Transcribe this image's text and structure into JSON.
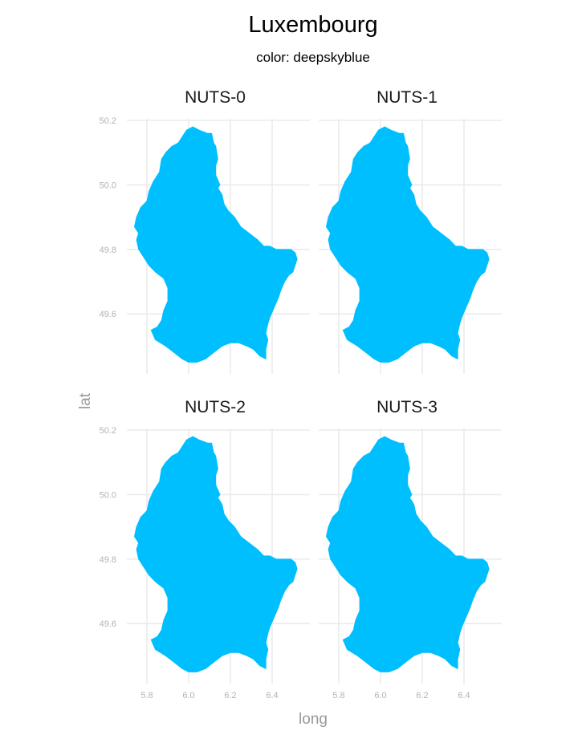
{
  "title": "Luxembourg",
  "subtitle": "color: deepskyblue",
  "xlabel": "long",
  "ylabel": "lat",
  "x_ticks": [
    "5.8",
    "6.0",
    "6.2",
    "6.4"
  ],
  "y_ticks": [
    "49.6",
    "49.8",
    "50.0",
    "50.2"
  ],
  "fill_color": "#00bfff",
  "grid_color": "#ebebeb",
  "panels": [
    {
      "label": "NUTS-0"
    },
    {
      "label": "NUTS-1"
    },
    {
      "label": "NUTS-2"
    },
    {
      "label": "NUTS-3"
    }
  ],
  "chart_data": {
    "type": "map",
    "region": "Luxembourg",
    "facets": [
      "NUTS-0",
      "NUTS-1",
      "NUTS-2",
      "NUTS-3"
    ],
    "fill": "deepskyblue",
    "x_range": [
      5.73,
      6.53
    ],
    "y_range": [
      49.44,
      50.18
    ],
    "x_ticks": [
      5.8,
      6.0,
      6.2,
      6.4
    ],
    "y_ticks": [
      49.6,
      49.8,
      50.0,
      50.2
    ],
    "outline": [
      [
        6.02,
        50.18
      ],
      [
        6.05,
        50.17
      ],
      [
        6.09,
        50.16
      ],
      [
        6.11,
        50.16
      ],
      [
        6.12,
        50.13
      ],
      [
        6.13,
        50.12
      ],
      [
        6.14,
        50.08
      ],
      [
        6.13,
        50.06
      ],
      [
        6.13,
        50.03
      ],
      [
        6.15,
        50.0
      ],
      [
        6.14,
        49.99
      ],
      [
        6.16,
        49.97
      ],
      [
        6.17,
        49.94
      ],
      [
        6.19,
        49.92
      ],
      [
        6.22,
        49.9
      ],
      [
        6.23,
        49.89
      ],
      [
        6.25,
        49.87
      ],
      [
        6.29,
        49.85
      ],
      [
        6.33,
        49.83
      ],
      [
        6.36,
        49.81
      ],
      [
        6.39,
        49.81
      ],
      [
        6.42,
        49.8
      ],
      [
        6.46,
        49.8
      ],
      [
        6.49,
        49.8
      ],
      [
        6.51,
        49.79
      ],
      [
        6.52,
        49.77
      ],
      [
        6.51,
        49.75
      ],
      [
        6.5,
        49.73
      ],
      [
        6.48,
        49.72
      ],
      [
        6.46,
        49.7
      ],
      [
        6.44,
        49.67
      ],
      [
        6.43,
        49.65
      ],
      [
        6.41,
        49.62
      ],
      [
        6.39,
        49.59
      ],
      [
        6.38,
        49.57
      ],
      [
        6.37,
        49.54
      ],
      [
        6.38,
        49.52
      ],
      [
        6.37,
        49.49
      ],
      [
        6.37,
        49.46
      ],
      [
        6.34,
        49.47
      ],
      [
        6.31,
        49.49
      ],
      [
        6.28,
        49.5
      ],
      [
        6.24,
        49.51
      ],
      [
        6.2,
        49.51
      ],
      [
        6.16,
        49.5
      ],
      [
        6.12,
        49.48
      ],
      [
        6.08,
        49.46
      ],
      [
        6.04,
        49.45
      ],
      [
        6.0,
        49.45
      ],
      [
        5.97,
        49.46
      ],
      [
        5.93,
        49.48
      ],
      [
        5.89,
        49.5
      ],
      [
        5.84,
        49.52
      ],
      [
        5.82,
        49.55
      ],
      [
        5.85,
        49.56
      ],
      [
        5.87,
        49.58
      ],
      [
        5.88,
        49.61
      ],
      [
        5.9,
        49.64
      ],
      [
        5.9,
        49.68
      ],
      [
        5.88,
        49.71
      ],
      [
        5.84,
        49.73
      ],
      [
        5.81,
        49.75
      ],
      [
        5.78,
        49.78
      ],
      [
        5.76,
        49.8
      ],
      [
        5.75,
        49.83
      ],
      [
        5.76,
        49.85
      ],
      [
        5.74,
        49.87
      ],
      [
        5.75,
        49.9
      ],
      [
        5.77,
        49.93
      ],
      [
        5.8,
        49.95
      ],
      [
        5.81,
        49.98
      ],
      [
        5.83,
        50.01
      ],
      [
        5.86,
        50.04
      ],
      [
        5.87,
        50.08
      ],
      [
        5.89,
        50.1
      ],
      [
        5.92,
        50.12
      ],
      [
        5.95,
        50.13
      ],
      [
        5.97,
        50.15
      ],
      [
        5.99,
        50.17
      ]
    ]
  }
}
